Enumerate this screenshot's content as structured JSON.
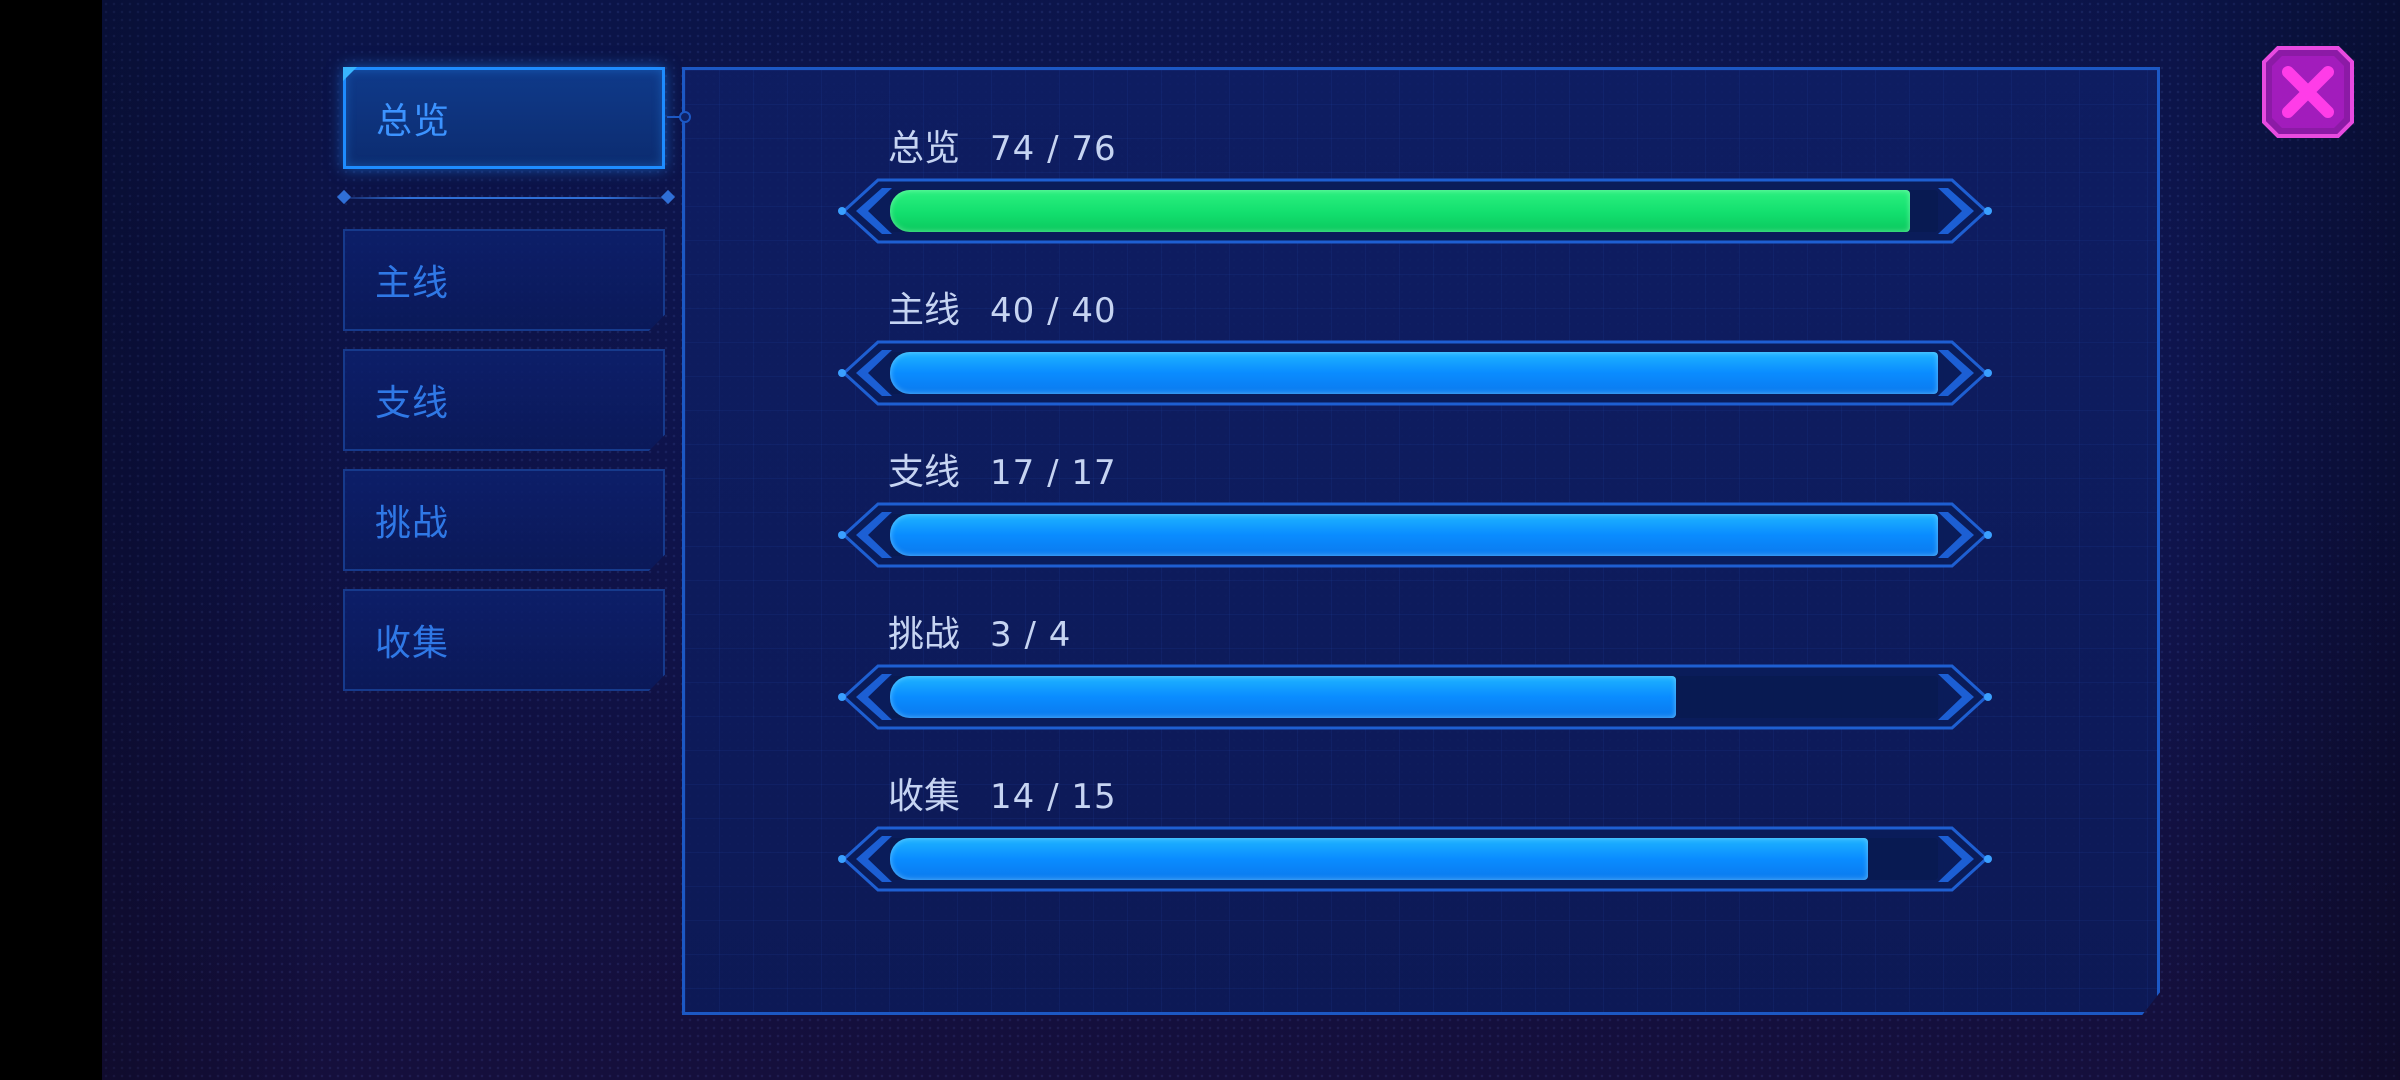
{
  "sidebar": {
    "tabs": [
      {
        "id": "overview",
        "label": "总览",
        "active": true
      },
      {
        "id": "main",
        "label": "主线",
        "active": false
      },
      {
        "id": "side",
        "label": "支线",
        "active": false
      },
      {
        "id": "challenge",
        "label": "挑战",
        "active": false
      },
      {
        "id": "collect",
        "label": "收集",
        "active": false
      }
    ]
  },
  "progress": [
    {
      "name": "总览",
      "count": "74 / 76",
      "current": 74,
      "total": 76,
      "color": "#12df6e"
    },
    {
      "name": "主线",
      "count": "40 / 40",
      "current": 40,
      "total": 40,
      "color": "#0a8cff"
    },
    {
      "name": "支线",
      "count": "17 / 17",
      "current": 17,
      "total": 17,
      "color": "#0a8cff"
    },
    {
      "name": "挑战",
      "count": "3 / 4",
      "current": 3,
      "total": 4,
      "color": "#0a8cff"
    },
    {
      "name": "收集",
      "count": "14 / 15",
      "current": 14,
      "total": 15,
      "color": "#0a8cff"
    }
  ],
  "close": {
    "icon": "close-icon",
    "color": "#d81ec8"
  }
}
